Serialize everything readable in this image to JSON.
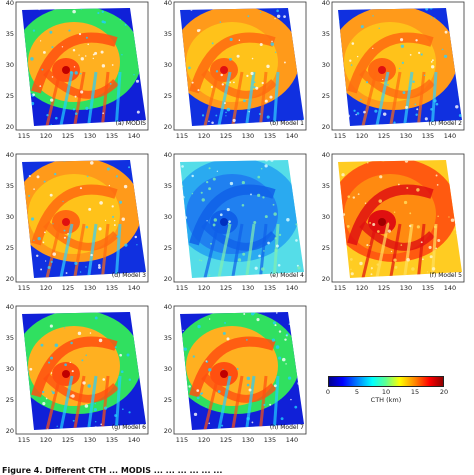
{
  "figure": {
    "y_ticks": [
      "40",
      "35",
      "30",
      "25",
      "20"
    ],
    "x_ticks": [
      "115",
      "120",
      "125",
      "130",
      "135",
      "140"
    ],
    "panels": [
      {
        "label": "(a) MODIS",
        "scheme": "normal"
      },
      {
        "label": "(b) Model 1",
        "scheme": "orange"
      },
      {
        "label": "(c) Model 2",
        "scheme": "orange"
      },
      {
        "label": "(d) Model 3",
        "scheme": "orange"
      },
      {
        "label": "(e) Model 4",
        "scheme": "cyan"
      },
      {
        "label": "(f) Model 5",
        "scheme": "red"
      },
      {
        "label": "(g) Model 6",
        "scheme": "normal"
      },
      {
        "label": "(h) Model 7",
        "scheme": "normal"
      }
    ],
    "colorbar": {
      "ticks": [
        "0",
        "5",
        "10",
        "15",
        "20"
      ],
      "label": "CTH (km)",
      "range": [
        0,
        20
      ],
      "colors": [
        "#00008f",
        "#0000ff",
        "#00ffff",
        "#ffff00",
        "#ff0000",
        "#8f0000"
      ]
    },
    "caption": "Figure 4. Different CTH ... MODIS ... ... ... ... ... ..."
  }
}
